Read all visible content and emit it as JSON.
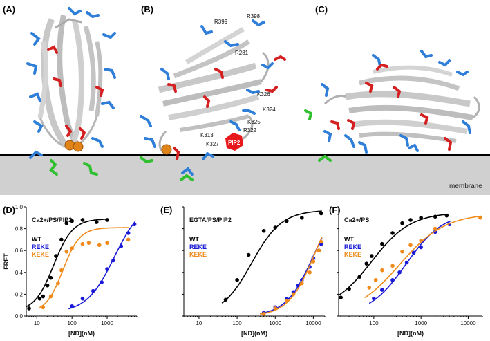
{
  "panels_top": [
    {
      "letter": "(A)"
    },
    {
      "letter": "(B)",
      "residues": [
        "R399",
        "R398",
        "R281",
        "K326",
        "K324",
        "K325",
        "R322",
        "K313",
        "K327"
      ],
      "pip_label": "PIP2"
    },
    {
      "letter": "(C)"
    }
  ],
  "membrane_label": "membrane",
  "colors": {
    "wt": "#000000",
    "reke": "#1a1ad6",
    "keke": "#f08a1c",
    "basic_residue": "#2f7fd8",
    "acidic_residue": "#d42020",
    "aromatic_residue": "#2fbf2f",
    "calcium": "#e0841a",
    "protein": "#c8c8c8",
    "membrane_fill": "#d0d0d0"
  },
  "icons": [
    "protein-ribbon-icon",
    "calcium-ion-icon",
    "pip2-hexagon-icon"
  ],
  "chart_data": [
    {
      "panel": "(D)",
      "type": "scatter",
      "condition": "Ca2+/PS/PIP2",
      "ylabel": "FRET",
      "xlabel": "[ND](nM)",
      "xscale": "log",
      "xlim": [
        5,
        7000
      ],
      "ylim": [
        0,
        1.0
      ],
      "xticks": [
        "10",
        "100",
        "1000"
      ],
      "yticks": [
        "0.0",
        "0.2",
        "0.4",
        "0.6",
        "0.8",
        "1.0"
      ],
      "series": [
        {
          "name": "WT",
          "color": "#000000",
          "x": [
            6,
            12,
            15,
            20,
            25,
            35,
            50,
            70,
            100,
            200,
            500,
            1000
          ],
          "y": [
            0.07,
            0.16,
            0.18,
            0.28,
            0.35,
            0.55,
            0.7,
            0.85,
            0.87,
            0.88,
            0.86,
            0.88
          ],
          "fit": {
            "min": 0.04,
            "max": 0.89,
            "ec50": 30,
            "hill": 1.6
          }
        },
        {
          "name": "REKE",
          "color": "#1a1ad6",
          "x": [
            100,
            200,
            400,
            700,
            1000,
            1500,
            2500,
            4000,
            6000
          ],
          "y": [
            0.09,
            0.16,
            0.23,
            0.31,
            0.43,
            0.51,
            0.64,
            0.76,
            0.84
          ],
          "fit": {
            "min": 0.03,
            "max": 1.05,
            "ec50": 1600,
            "hill": 1.1
          }
        },
        {
          "name": "KEKE",
          "color": "#f08a1c",
          "x": [
            15,
            25,
            40,
            50,
            70,
            100,
            200,
            300,
            600,
            1000,
            4000
          ],
          "y": [
            0.08,
            0.18,
            0.3,
            0.42,
            0.59,
            0.62,
            0.66,
            0.67,
            0.65,
            0.67,
            0.7
          ],
          "fit": {
            "min": 0.03,
            "max": 0.81,
            "ec50": 55,
            "hill": 1.8
          }
        }
      ]
    },
    {
      "panel": "(E)",
      "type": "scatter",
      "condition": "EGTA/PS/PIP2",
      "xlabel": "[ND](nM)",
      "xscale": "log",
      "xlim": [
        4,
        20000
      ],
      "ylim": [
        0,
        1.0
      ],
      "xticks": [
        "10",
        "100",
        "1000",
        "10000"
      ],
      "series": [
        {
          "name": "WT",
          "color": "#000000",
          "x": [
            50,
            100,
            200,
            500,
            1000,
            2000,
            5000,
            16000
          ],
          "y": [
            0.15,
            0.33,
            0.56,
            0.78,
            0.81,
            0.87,
            0.9,
            0.94
          ],
          "fit": {
            "min": 0.0,
            "max": 0.97,
            "ec50": 240,
            "hill": 1.1
          }
        },
        {
          "name": "REKE",
          "color": "#1a1ad6",
          "x": [
            500,
            1000,
            2000,
            3000,
            4000,
            5000,
            8000,
            10000,
            14000,
            16000
          ],
          "y": [
            0.03,
            0.08,
            0.16,
            0.22,
            0.28,
            0.33,
            0.45,
            0.53,
            0.6,
            0.66
          ],
          "fit": {
            "min": 0.0,
            "max": 1.1,
            "ec50": 10000,
            "hill": 1.2
          }
        },
        {
          "name": "KEKE",
          "color": "#f08a1c",
          "x": [
            500,
            1000,
            2000,
            3000,
            5000,
            8000,
            10000,
            14000,
            16000
          ],
          "y": [
            0.02,
            0.07,
            0.14,
            0.2,
            0.3,
            0.4,
            0.5,
            0.6,
            0.68
          ],
          "fit": {
            "min": 0.0,
            "max": 1.15,
            "ec50": 11000,
            "hill": 1.25
          }
        }
      ]
    },
    {
      "panel": "(F)",
      "type": "scatter",
      "condition": "Ca2+/PS",
      "xlabel": "[ND](nM)",
      "xscale": "log",
      "xlim": [
        18,
        20000
      ],
      "ylim": [
        0,
        1.0
      ],
      "xticks": [
        "100",
        "1000",
        "10000"
      ],
      "series": [
        {
          "name": "WT",
          "color": "#000000",
          "x": [
            20,
            30,
            50,
            70,
            90,
            150,
            250,
            400,
            600,
            1000,
            2000,
            3500
          ],
          "y": [
            0.17,
            0.25,
            0.36,
            0.48,
            0.55,
            0.66,
            0.76,
            0.85,
            0.88,
            0.9,
            0.91,
            0.92
          ],
          "fit": {
            "min": 0.05,
            "max": 0.95,
            "ec50": 90,
            "hill": 1.05
          }
        },
        {
          "name": "REKE",
          "color": "#1a1ad6",
          "x": [
            100,
            150,
            250,
            350,
            500,
            700,
            1000,
            2000,
            4000
          ],
          "y": [
            0.16,
            0.24,
            0.33,
            0.4,
            0.49,
            0.58,
            0.63,
            0.77,
            0.84
          ],
          "fit": {
            "min": 0.0,
            "max": 0.95,
            "ec50": 480,
            "hill": 1.1
          }
        },
        {
          "name": "KEKE",
          "color": "#f08a1c",
          "x": [
            80,
            110,
            150,
            250,
            400,
            600,
            1000,
            2000,
            18000
          ],
          "y": [
            0.26,
            0.33,
            0.42,
            0.46,
            0.59,
            0.65,
            0.69,
            0.8,
            0.9
          ],
          "fit": {
            "min": 0.0,
            "max": 0.94,
            "ec50": 350,
            "hill": 0.9
          }
        }
      ]
    }
  ]
}
